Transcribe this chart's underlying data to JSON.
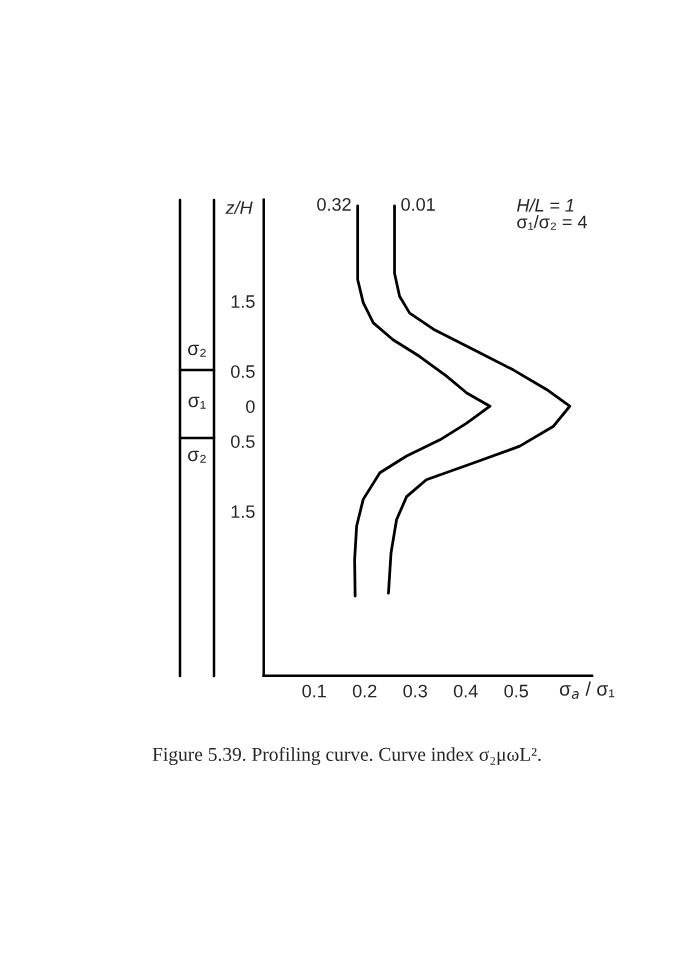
{
  "chart_data": {
    "type": "line",
    "xlabel": "σ$_{a}$ / σ₁",
    "ylabel": "z/H",
    "xlim": [
      0,
      0.65
    ],
    "xticks": [
      0.1,
      0.2,
      0.3,
      0.4,
      0.5
    ],
    "ylim": [
      -3.85,
      2.95
    ],
    "yticks": [
      {
        "value": 1.5,
        "label": "1.5"
      },
      {
        "value": 0.5,
        "label": "0.5"
      },
      0,
      {
        "value": -0.5,
        "label": "0.5"
      },
      {
        "value": -1.5,
        "label": "1.5"
      }
    ],
    "grid": false,
    "legend": false,
    "marker": "none",
    "line_style": "solid",
    "series": [
      {
        "name": "0.32",
        "color": "#000000",
        "x": [
          0.186,
          0.186,
          0.197,
          0.217,
          0.256,
          0.309,
          0.362,
          0.402,
          0.448,
          0.402,
          0.349,
          0.283,
          0.23,
          0.197,
          0.184,
          0.18,
          0.181
        ],
        "values": [
          2.86,
          1.81,
          1.48,
          1.19,
          0.95,
          0.71,
          0.43,
          0.19,
          0.0,
          -0.24,
          -0.48,
          -0.71,
          -0.95,
          -1.33,
          -1.71,
          -2.19,
          -2.71
        ]
      },
      {
        "name": "0.01",
        "color": "#000000",
        "x": [
          0.259,
          0.259,
          0.269,
          0.289,
          0.336,
          0.415,
          0.494,
          0.56,
          0.606,
          0.573,
          0.507,
          0.415,
          0.322,
          0.283,
          0.263,
          0.252,
          0.247
        ],
        "values": [
          2.86,
          1.9,
          1.57,
          1.33,
          1.1,
          0.81,
          0.52,
          0.24,
          0.0,
          -0.29,
          -0.57,
          -0.81,
          -1.05,
          -1.29,
          -1.62,
          -2.1,
          -2.67
        ]
      }
    ],
    "annotations": [
      "H/L = 1",
      "σ₁/σ₂ = 4",
      "σ₂",
      "σ₁",
      "σ₂",
      "Figure 5.39. Profiling curve. Curve index σ₂μωL²."
    ]
  }
}
